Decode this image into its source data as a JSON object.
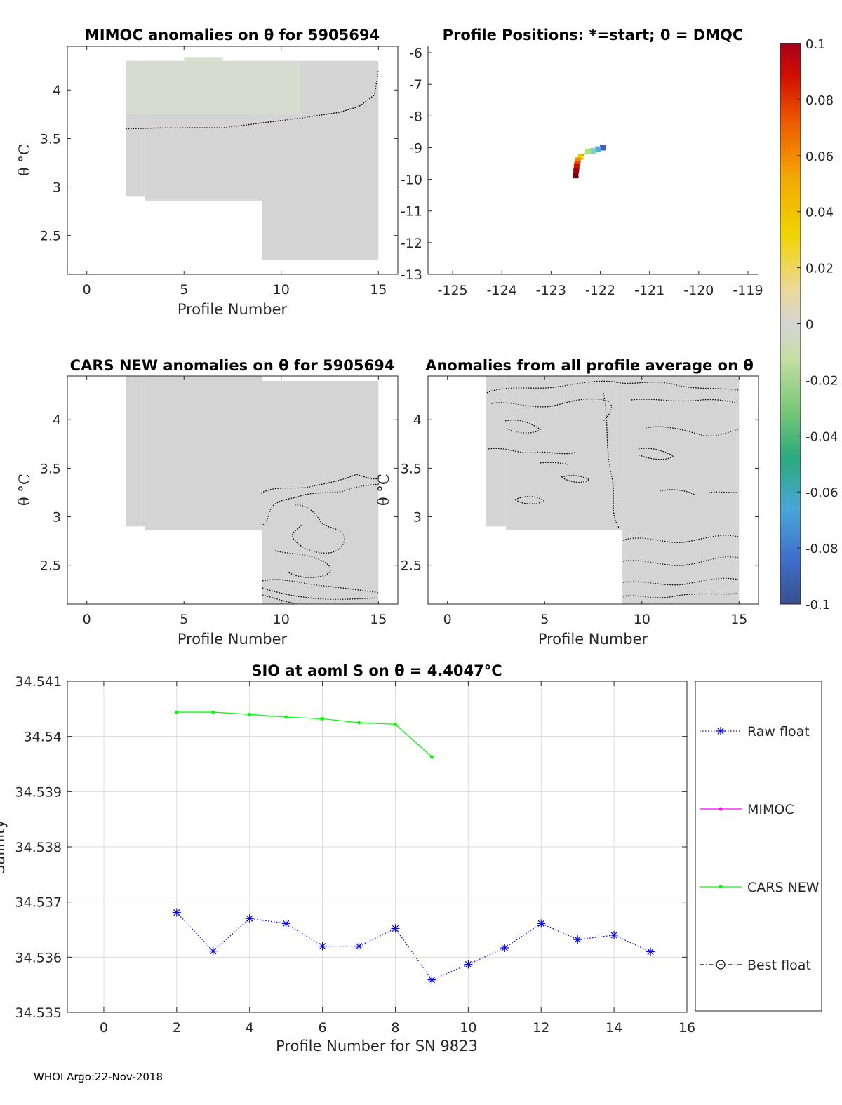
{
  "figure": {
    "footer": "WHOI Argo:22-Nov-2018"
  },
  "panels": {
    "mimoc": {
      "title": "MIMOC anomalies on θ  for 5905694",
      "xlabel": "Profile Number",
      "ylabel": "θ °C",
      "xlim": [
        -1,
        16
      ],
      "ylim": [
        2.1,
        4.45
      ],
      "xticks": [
        "0",
        "5",
        "10",
        "15"
      ],
      "yticks": [
        "2.5",
        "3",
        "3.5",
        "4"
      ]
    },
    "positions": {
      "title": "Profile Positions: *=start; 0 = DMQC",
      "xlim": [
        -125.5,
        -118.8
      ],
      "ylim": [
        -13,
        -5.8
      ],
      "xticks": [
        "-125",
        "-124",
        "-123",
        "-122",
        "-121",
        "-120",
        "-119"
      ],
      "yticks": [
        "-6",
        "-7",
        "-8",
        "-9",
        "-10",
        "-11",
        "-12",
        "-13"
      ]
    },
    "cars": {
      "title": "CARS NEW anomalies on θ for 5905694",
      "xlabel": "Profile Number",
      "ylabel": "θ °C",
      "xlim": [
        -1,
        16
      ],
      "ylim": [
        2.1,
        4.45
      ],
      "xticks": [
        "0",
        "5",
        "10",
        "15"
      ],
      "yticks": [
        "2.5",
        "3",
        "3.5",
        "4"
      ]
    },
    "allprofile": {
      "title": "Anomalies from all profile average on θ",
      "xlabel": "Profile Number",
      "ylabel": "θ °C",
      "xlim": [
        -1,
        16
      ],
      "ylim": [
        2.1,
        4.45
      ],
      "xticks": [
        "0",
        "5",
        "10",
        "15"
      ],
      "yticks": [
        "2.5",
        "3",
        "3.5",
        "4"
      ]
    },
    "colorbar": {
      "ticks": [
        "0.1",
        "0.08",
        "0.06",
        "0.04",
        "0.02",
        "0",
        "-0.02",
        "-0.04",
        "-0.06",
        "-0.08",
        "-0.1"
      ],
      "range": [
        -0.1,
        0.1
      ]
    }
  },
  "chart_data": [
    {
      "type": "heatmap",
      "panel": "mimoc",
      "title": "MIMOC anomalies on θ  for 5905694",
      "xlabel": "Profile Number",
      "ylabel": "θ °C",
      "fill_color": "#d4d4d4",
      "upper_tint": "#d7dfcf",
      "coverage": [
        {
          "x": [
            2,
            3
          ],
          "theta": [
            2.9,
            4.3
          ]
        },
        {
          "x": [
            3,
            9
          ],
          "theta": [
            2.86,
            4.3
          ]
        },
        {
          "x": [
            9,
            15
          ],
          "theta": [
            2.25,
            4.3
          ]
        }
      ],
      "zero_contour": {
        "x": [
          2,
          4,
          7,
          9,
          11,
          13,
          14,
          14.8,
          15
        ],
        "theta": [
          3.6,
          3.61,
          3.61,
          3.66,
          3.71,
          3.77,
          3.83,
          3.95,
          4.2
        ]
      }
    },
    {
      "type": "scatter",
      "panel": "positions",
      "title": "Profile Positions: *=start; 0 = DMQC",
      "x_longitude": [
        -121.95,
        -122.05,
        -122.15,
        -122.25,
        -122.4,
        -122.45,
        -122.47,
        -122.48,
        -122.49,
        -122.5
      ],
      "y_latitude": [
        -9.0,
        -9.05,
        -9.1,
        -9.12,
        -9.3,
        -9.4,
        -9.5,
        -9.6,
        -9.72,
        -9.88
      ],
      "colors": [
        "#3a5ec8",
        "#4ab0d8",
        "#7fd4c0",
        "#b0e07a",
        "#f0c800",
        "#f28a00",
        "#e84a00",
        "#c81800",
        "#a80000",
        "#7a0000"
      ]
    },
    {
      "type": "heatmap",
      "panel": "cars",
      "title": "CARS NEW anomalies on θ for 5905694",
      "xlabel": "Profile Number",
      "ylabel": "θ °C",
      "fill_color": "#d4d4d4",
      "coverage": [
        {
          "x": [
            2,
            3
          ],
          "theta": [
            2.9,
            4.45
          ]
        },
        {
          "x": [
            3,
            9
          ],
          "theta": [
            2.86,
            4.45
          ]
        },
        {
          "x": [
            9,
            15
          ],
          "theta": [
            2.1,
            4.4
          ]
        }
      ]
    },
    {
      "type": "heatmap",
      "panel": "allprofile",
      "title": "Anomalies from all profile average on θ",
      "xlabel": "Profile Number",
      "ylabel": "θ °C",
      "fill_color": "#d4d4d4",
      "coverage": [
        {
          "x": [
            2,
            3
          ],
          "theta": [
            2.9,
            4.45
          ]
        },
        {
          "x": [
            3,
            9
          ],
          "theta": [
            2.86,
            4.45
          ]
        },
        {
          "x": [
            9,
            15
          ],
          "theta": [
            2.1,
            4.45
          ]
        }
      ]
    },
    {
      "type": "line",
      "panel": "salinity",
      "title": "SIO at aoml S on θ = 4.4047°C",
      "xlabel": "Profile Number for SN 9823",
      "ylabel": "Salinity",
      "xlim": [
        -1,
        16
      ],
      "ylim": [
        34.535,
        34.541
      ],
      "xticks": [
        "0",
        "2",
        "4",
        "6",
        "8",
        "10",
        "12",
        "14",
        "16"
      ],
      "yticks": [
        "34.535",
        "34.536",
        "34.537",
        "34.538",
        "34.539",
        "34.54",
        "34.541"
      ],
      "grid": true,
      "legend_position": "right",
      "series": [
        {
          "name": "Raw float",
          "color": "#0000ff",
          "style": "dotted-star",
          "x": [
            2,
            3,
            4,
            5,
            6,
            7,
            8,
            9,
            10,
            11,
            12,
            13,
            14,
            15
          ],
          "values": [
            34.53681,
            34.53611,
            34.5367,
            34.53661,
            34.5362,
            34.5362,
            34.53652,
            34.53559,
            34.53587,
            34.53617,
            34.53661,
            34.53632,
            34.5364,
            34.5361
          ]
        },
        {
          "name": "MIMOC",
          "color": "#ff00ff",
          "style": "solid-dot",
          "x": [],
          "values": []
        },
        {
          "name": "CARS NEW",
          "color": "#00ff00",
          "style": "solid-dot",
          "x": [
            2,
            3,
            4,
            5,
            6,
            7,
            8,
            9
          ],
          "values": [
            34.54044,
            34.54044,
            34.5404,
            34.54035,
            34.54032,
            34.54025,
            34.54022,
            34.53963
          ]
        },
        {
          "name": "Best float",
          "color": "#000000",
          "style": "dashdot-circle",
          "x": [],
          "values": []
        }
      ]
    }
  ]
}
